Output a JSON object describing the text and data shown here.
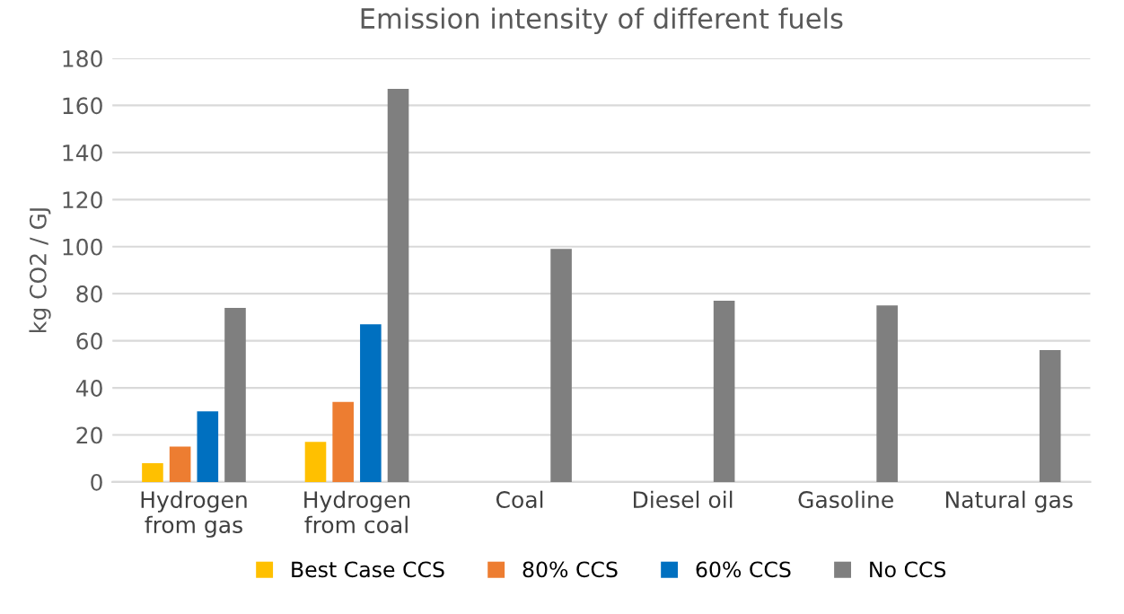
{
  "chart_data": {
    "type": "bar",
    "title": "Emission intensity of different fuels",
    "ylabel": "kg CO2 / GJ",
    "categories": [
      "Hydrogen\nfrom gas",
      "Hydrogen\nfrom coal",
      "Coal",
      "Diesel oil",
      "Gasoline",
      "Natural gas"
    ],
    "series": [
      {
        "name": "Best Case CCS",
        "color": "#ffc000",
        "values": [
          8,
          17,
          null,
          null,
          null,
          null
        ]
      },
      {
        "name": "80% CCS",
        "color": "#ed7d31",
        "values": [
          15,
          34,
          null,
          null,
          null,
          null
        ]
      },
      {
        "name": "60% CCS",
        "color": "#0070c0",
        "values": [
          30,
          67,
          null,
          null,
          null,
          null
        ]
      },
      {
        "name": "No CCS",
        "color": "#7f7f7f",
        "values": [
          74,
          167,
          99,
          77,
          75,
          56
        ]
      }
    ],
    "ylim": [
      0,
      180
    ],
    "yticks": [
      0,
      20,
      40,
      60,
      80,
      100,
      120,
      140,
      160,
      180
    ],
    "grid": "y",
    "legend": "bottom"
  }
}
